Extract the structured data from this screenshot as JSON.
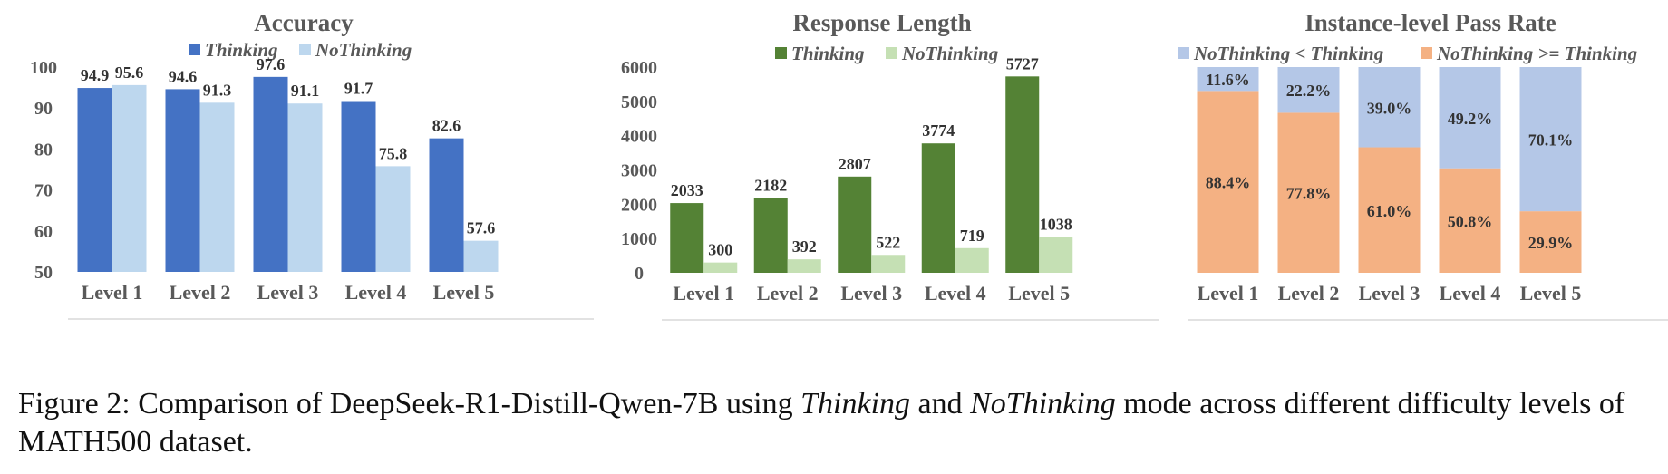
{
  "figure": {
    "caption_prefix": "Figure 2: Comparison of DeepSeek-R1-Distill-Qwen-7B using ",
    "caption_em1": "Thinking",
    "caption_mid": " and ",
    "caption_em2": "NoThinking",
    "caption_suffix": " mode across different difficulty levels of MATH500 dataset."
  },
  "chart_data": [
    {
      "type": "bar",
      "title": "Accuracy",
      "categories": [
        "Level 1",
        "Level 2",
        "Level 3",
        "Level 4",
        "Level 5"
      ],
      "series": [
        {
          "name": "Thinking",
          "values": [
            94.9,
            94.6,
            97.6,
            91.7,
            82.6
          ],
          "color": "#4472C4"
        },
        {
          "name": "NoThinking",
          "values": [
            95.6,
            91.3,
            91.1,
            75.8,
            57.6
          ],
          "color": "#BDD7EE"
        }
      ],
      "ylim": [
        50,
        100
      ],
      "yticks": [
        50,
        60,
        70,
        80,
        90,
        100
      ],
      "legend": "top-center",
      "grid": false
    },
    {
      "type": "bar",
      "title": "Response Length",
      "categories": [
        "Level 1",
        "Level 2",
        "Level 3",
        "Level 4",
        "Level 5"
      ],
      "series": [
        {
          "name": "Thinking",
          "values": [
            2033,
            2182,
            2807,
            3774,
            5727
          ],
          "color": "#548235"
        },
        {
          "name": "NoThinking",
          "values": [
            300,
            392,
            522,
            719,
            1038
          ],
          "color": "#C5E0B4"
        }
      ],
      "ylim": [
        0,
        6000
      ],
      "yticks": [
        0,
        1000,
        2000,
        3000,
        4000,
        5000,
        6000
      ],
      "legend": "top-center",
      "grid": false
    },
    {
      "type": "stacked-bar",
      "title": "Instance-level Pass Rate",
      "categories": [
        "Level 1",
        "Level 2",
        "Level 3",
        "Level 4",
        "Level 5"
      ],
      "series": [
        {
          "name": "NoThinking >= Thinking",
          "values": [
            88.4,
            77.8,
            61.0,
            50.8,
            29.9
          ],
          "labels": [
            "88.4%",
            "77.8%",
            "61.0%",
            "50.8%",
            "29.9%"
          ],
          "color": "#F4B183"
        },
        {
          "name": "NoThinking < Thinking",
          "values": [
            11.6,
            22.2,
            39.0,
            49.2,
            70.1
          ],
          "labels": [
            "11.6%",
            "22.2%",
            "39.0%",
            "49.2%",
            "70.1%"
          ],
          "color": "#B4C7E7"
        }
      ],
      "legend_order": [
        "NoThinking < Thinking",
        "NoThinking >= Thinking"
      ],
      "ylim": [
        0,
        100
      ],
      "legend": "top-center",
      "grid": false
    }
  ]
}
